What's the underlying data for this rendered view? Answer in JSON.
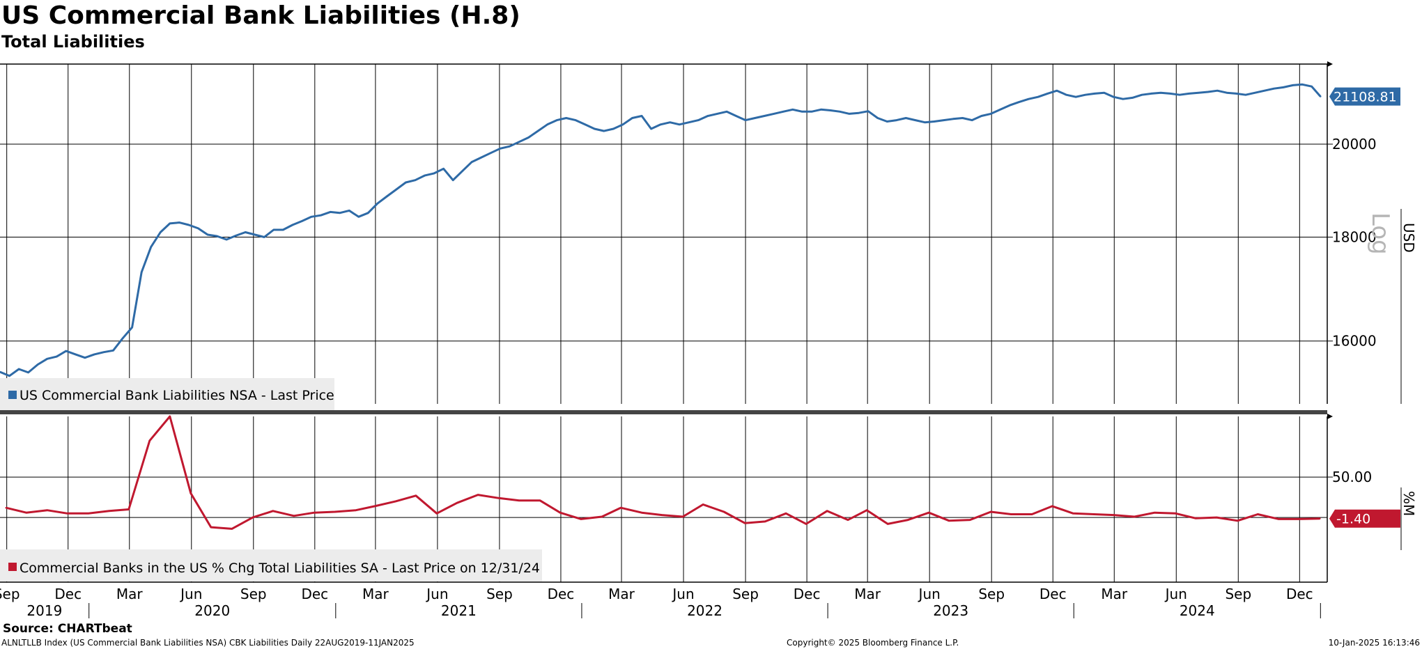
{
  "header": {
    "title": "US Commercial Bank Liabilities (H.8)",
    "subtitle": "Total Liabilities"
  },
  "colors": {
    "series1": "#2e6aa6",
    "series2": "#c0182f",
    "grid": "#000000"
  },
  "chart_data": [
    {
      "type": "line",
      "title": "US Commercial Bank Liabilities (H.8)",
      "subtitle": "Total Liabilities",
      "y_unit": "USD",
      "scale_note": "Log",
      "ylim": [
        14900,
        21900
      ],
      "yticks": [
        "16000",
        "18000",
        "20000"
      ],
      "grid": true,
      "legend_position": "bottom-left",
      "last_value_label": "21108.81",
      "series": [
        {
          "name": "US Commercial Bank Liabilities NSA - Last Price",
          "x": [
            "2019-08-22",
            "2019-09-05",
            "2019-09-19",
            "2019-10-03",
            "2019-10-17",
            "2019-10-31",
            "2019-11-14",
            "2019-11-28",
            "2019-12-12",
            "2019-12-26",
            "2020-01-09",
            "2020-01-23",
            "2020-02-06",
            "2020-02-20",
            "2020-03-05",
            "2020-03-19",
            "2020-04-02",
            "2020-04-16",
            "2020-04-30",
            "2020-05-14",
            "2020-05-28",
            "2020-06-11",
            "2020-06-25",
            "2020-07-09",
            "2020-07-23",
            "2020-08-06",
            "2020-08-20",
            "2020-09-03",
            "2020-09-17",
            "2020-10-01",
            "2020-10-15",
            "2020-10-29",
            "2020-11-12",
            "2020-11-26",
            "2020-12-10",
            "2020-12-24",
            "2021-01-07",
            "2021-01-21",
            "2021-02-04",
            "2021-02-18",
            "2021-03-04",
            "2021-03-18",
            "2021-04-01",
            "2021-04-15",
            "2021-04-29",
            "2021-05-13",
            "2021-05-27",
            "2021-06-10",
            "2021-06-24",
            "2021-07-08",
            "2021-07-22",
            "2021-08-05",
            "2021-08-19",
            "2021-09-02",
            "2021-09-16",
            "2021-09-30",
            "2021-10-14",
            "2021-10-28",
            "2021-11-11",
            "2021-11-25",
            "2021-12-09",
            "2021-12-23",
            "2022-01-06",
            "2022-01-20",
            "2022-02-03",
            "2022-02-17",
            "2022-03-03",
            "2022-03-17",
            "2022-03-31",
            "2022-04-14",
            "2022-04-28",
            "2022-05-12",
            "2022-05-26",
            "2022-06-09",
            "2022-06-23",
            "2022-07-07",
            "2022-07-21",
            "2022-08-04",
            "2022-08-18",
            "2022-09-01",
            "2022-09-15",
            "2022-09-29",
            "2022-10-13",
            "2022-10-27",
            "2022-11-10",
            "2022-11-24",
            "2022-12-08",
            "2022-12-22",
            "2023-01-05",
            "2023-01-19",
            "2023-02-02",
            "2023-02-16",
            "2023-03-02",
            "2023-03-16",
            "2023-03-30",
            "2023-04-13",
            "2023-04-27",
            "2023-05-11",
            "2023-05-25",
            "2023-06-08",
            "2023-06-22",
            "2023-07-06",
            "2023-07-20",
            "2023-08-03",
            "2023-08-17",
            "2023-08-31",
            "2023-09-14",
            "2023-09-28",
            "2023-10-12",
            "2023-10-26",
            "2023-11-09",
            "2023-11-23",
            "2023-12-07",
            "2023-12-21",
            "2024-01-04",
            "2024-01-18",
            "2024-02-01",
            "2024-02-15",
            "2024-02-29",
            "2024-03-14",
            "2024-03-28",
            "2024-04-11",
            "2024-04-25",
            "2024-05-09",
            "2024-05-23",
            "2024-06-06",
            "2024-06-20",
            "2024-07-04",
            "2024-07-18",
            "2024-08-01",
            "2024-08-15",
            "2024-08-29",
            "2024-09-12",
            "2024-09-26",
            "2024-10-10",
            "2024-10-24",
            "2024-11-07",
            "2024-11-21",
            "2024-12-05",
            "2024-12-19",
            "2025-01-01"
          ],
          "values": [
            15450,
            15380,
            15500,
            15440,
            15580,
            15680,
            15720,
            15820,
            15760,
            15700,
            15760,
            15800,
            15830,
            16050,
            16250,
            17300,
            17800,
            18100,
            18280,
            18300,
            18250,
            18180,
            18050,
            18020,
            17950,
            18030,
            18100,
            18050,
            18000,
            18150,
            18150,
            18250,
            18330,
            18420,
            18450,
            18520,
            18500,
            18550,
            18420,
            18500,
            18700,
            18850,
            19000,
            19150,
            19200,
            19300,
            19350,
            19450,
            19200,
            19400,
            19600,
            19700,
            19800,
            19900,
            19950,
            20050,
            20150,
            20300,
            20450,
            20550,
            20600,
            20550,
            20450,
            20350,
            20300,
            20350,
            20450,
            20600,
            20650,
            20350,
            20450,
            20500,
            20450,
            20500,
            20550,
            20650,
            20700,
            20750,
            20650,
            20550,
            20600,
            20650,
            20700,
            20750,
            20800,
            20750,
            20750,
            20800,
            20780,
            20750,
            20700,
            20720,
            20760,
            20600,
            20520,
            20550,
            20600,
            20550,
            20500,
            20520,
            20550,
            20580,
            20600,
            20550,
            20650,
            20700,
            20800,
            20900,
            20980,
            21050,
            21100,
            21180,
            21250,
            21150,
            21100,
            21150,
            21180,
            21200,
            21100,
            21050,
            21080,
            21150,
            21180,
            21200,
            21180,
            21150,
            21180,
            21200,
            21220,
            21250,
            21200,
            21180,
            21150,
            21200,
            21250,
            21300,
            21330,
            21380,
            21400,
            21350,
            21108.81
          ]
        }
      ]
    },
    {
      "type": "line",
      "y_unit": "%M",
      "ylim": [
        -80,
        125
      ],
      "yticks": [
        "50.00"
      ],
      "grid": true,
      "legend_position": "bottom-left",
      "last_value_label": "-1.40",
      "series": [
        {
          "name": "Commercial Banks in the US % Chg Total Liabilities SA - Last Price on 12/31/24",
          "x": [
            "2019-08-31",
            "2019-09-30",
            "2019-10-31",
            "2019-11-30",
            "2019-12-31",
            "2020-01-31",
            "2020-02-29",
            "2020-03-31",
            "2020-04-30",
            "2020-05-31",
            "2020-06-30",
            "2020-07-31",
            "2020-08-31",
            "2020-09-30",
            "2020-10-31",
            "2020-11-30",
            "2020-12-31",
            "2021-01-31",
            "2021-02-28",
            "2021-03-31",
            "2021-04-30",
            "2021-05-31",
            "2021-06-30",
            "2021-07-31",
            "2021-08-31",
            "2021-09-30",
            "2021-10-31",
            "2021-11-30",
            "2021-12-31",
            "2022-01-31",
            "2022-02-28",
            "2022-03-31",
            "2022-04-30",
            "2022-05-31",
            "2022-06-30",
            "2022-07-31",
            "2022-08-31",
            "2022-09-30",
            "2022-10-31",
            "2022-11-30",
            "2022-12-31",
            "2023-01-31",
            "2023-02-28",
            "2023-03-31",
            "2023-04-30",
            "2023-05-31",
            "2023-06-30",
            "2023-07-31",
            "2023-08-31",
            "2023-09-30",
            "2023-10-31",
            "2023-11-30",
            "2023-12-31",
            "2024-01-31",
            "2024-02-29",
            "2024-03-31",
            "2024-04-30",
            "2024-05-31",
            "2024-06-30",
            "2024-07-31",
            "2024-08-31",
            "2024-09-30",
            "2024-10-31",
            "2024-11-30",
            "2024-12-31"
          ],
          "values": [
            12,
            6,
            9,
            5,
            5,
            8,
            10,
            95,
            125,
            30,
            -12,
            -14,
            0,
            8,
            2,
            6,
            7,
            9,
            14,
            20,
            27,
            5,
            18,
            28,
            24,
            21,
            21,
            6,
            -2,
            1,
            12,
            6,
            3,
            1,
            16,
            7,
            -7,
            -5,
            5,
            -8,
            8,
            -3,
            9,
            -8,
            -3,
            6,
            -4,
            -3,
            7,
            4,
            4,
            14,
            5,
            4,
            3,
            1,
            6,
            5,
            -1,
            0,
            -4,
            4,
            -2,
            -2,
            -1.4
          ]
        }
      ]
    }
  ],
  "x_axis": {
    "months": [
      "Sep",
      "Dec",
      "Mar",
      "Jun",
      "Sep",
      "Dec",
      "Mar",
      "Jun",
      "Sep",
      "Dec",
      "Mar",
      "Jun",
      "Sep",
      "Dec",
      "Mar",
      "Jun",
      "Sep",
      "Dec",
      "Mar",
      "Jun",
      "Sep",
      "Dec"
    ],
    "years": [
      "2019",
      "2020",
      "2021",
      "2022",
      "2023",
      "2024"
    ]
  },
  "footer": {
    "source": "Source: CHARTbeat",
    "ticker": "ALNLTLLB Index (US Commercial Bank Liabilities NSA) CBK Liabilities  Daily 22AUG2019-11JAN2025",
    "copyright": "Copyright© 2025 Bloomberg Finance L.P.",
    "timestamp": "10-Jan-2025 16:13:46"
  }
}
